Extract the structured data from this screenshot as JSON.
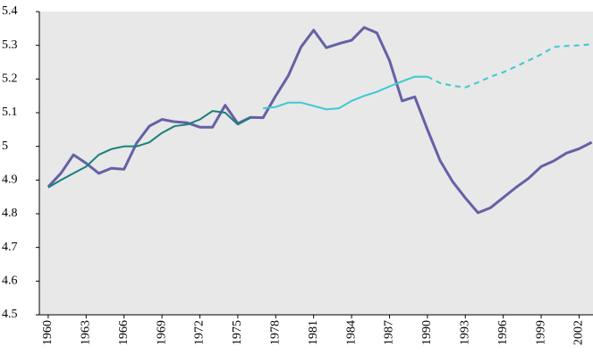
{
  "chart_data": {
    "type": "line",
    "xlim": [
      1959.3,
      2003.1
    ],
    "xticks": [
      1960,
      1963,
      1966,
      1969,
      1972,
      1975,
      1978,
      1981,
      1984,
      1987,
      1990,
      1993,
      1996,
      1999,
      2002
    ],
    "ylim": [
      4.5,
      5.4
    ],
    "yticks": [
      4.5,
      4.6,
      4.7,
      4.8,
      4.9,
      5,
      5.1,
      5.2,
      5.3,
      5.4
    ],
    "grid": false,
    "background": "#e8e8e8",
    "series": [
      {
        "color": "#6561a6",
        "width": 3,
        "dash": false,
        "x": [
          1960,
          1961,
          1962,
          1963,
          1964,
          1965,
          1966,
          1967,
          1968,
          1969,
          1970,
          1971,
          1972,
          1973,
          1974,
          1975,
          1976,
          1977,
          1978,
          1979,
          1980,
          1981,
          1982,
          1983,
          1984,
          1985,
          1986,
          1987,
          1988,
          1989,
          1990,
          1991,
          1992,
          1993,
          1994,
          1995,
          1996,
          1997,
          1998,
          1999,
          2000,
          2001,
          2002,
          2003
        ],
        "values": [
          4.88,
          4.92,
          4.975,
          4.95,
          4.92,
          4.935,
          4.932,
          5.01,
          5.06,
          5.08,
          5.073,
          5.07,
          5.057,
          5.057,
          5.122,
          5.068,
          5.086,
          5.085,
          5.15,
          5.21,
          5.295,
          5.345,
          5.293,
          5.305,
          5.315,
          5.353,
          5.337,
          5.255,
          5.135,
          5.147,
          5.05,
          4.958,
          4.895,
          4.847,
          4.803,
          4.818,
          4.848,
          4.878,
          4.905,
          4.94,
          4.957,
          4.98,
          4.993,
          5.012
        ]
      },
      {
        "color": "#1a7f7a",
        "width": 2,
        "dash": false,
        "x": [
          1960,
          1961,
          1962,
          1963,
          1964,
          1965,
          1966,
          1967,
          1968,
          1969,
          1970,
          1971,
          1972,
          1973,
          1974,
          1975,
          1976
        ],
        "values": [
          4.878,
          4.9,
          4.92,
          4.94,
          4.975,
          4.992,
          5.0,
          5.0,
          5.012,
          5.04,
          5.06,
          5.065,
          5.08,
          5.105,
          5.1,
          5.065,
          5.085
        ]
      },
      {
        "color": "#3cc8d2",
        "width": 2,
        "dash": false,
        "x": [
          1977,
          1978,
          1979,
          1980,
          1981,
          1982,
          1983,
          1984,
          1985,
          1986,
          1987,
          1988,
          1989,
          1990
        ],
        "values": [
          5.113,
          5.117,
          5.13,
          5.13,
          5.12,
          5.11,
          5.113,
          5.135,
          5.15,
          5.162,
          5.178,
          5.193,
          5.207,
          5.207
        ]
      },
      {
        "color": "#3cc8d2",
        "width": 2,
        "dash": true,
        "x": [
          1990,
          1991,
          1992,
          1993,
          1994,
          1995,
          1996,
          1997,
          1998,
          1999,
          2000,
          2001,
          2002,
          2003
        ],
        "values": [
          5.207,
          5.188,
          5.18,
          5.175,
          5.19,
          5.207,
          5.22,
          5.237,
          5.255,
          5.273,
          5.295,
          5.298,
          5.3,
          5.303
        ]
      }
    ]
  }
}
